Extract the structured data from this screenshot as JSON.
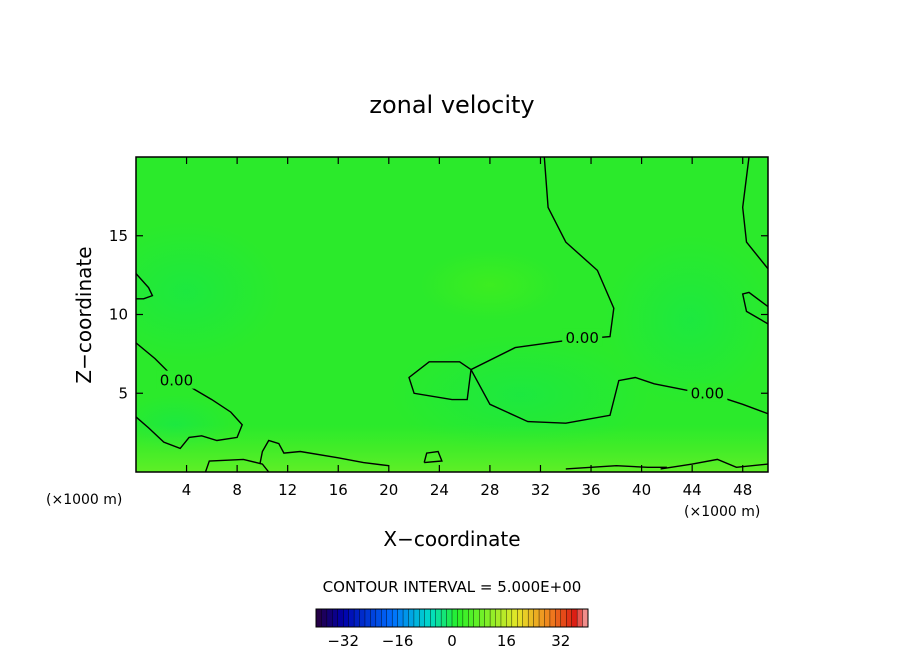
{
  "chart_data": {
    "type": "heatmap",
    "title": "zonal velocity",
    "xlabel": "X−coordinate",
    "ylabel": "Z−coordinate",
    "x_unit_left": "(×1000 m)",
    "x_unit_right": "(×1000 m)",
    "xlim": [
      0,
      50
    ],
    "ylim": [
      0,
      20
    ],
    "x_ticks": [
      4,
      8,
      12,
      16,
      20,
      24,
      28,
      32,
      36,
      40,
      44,
      48
    ],
    "x_tick_labels": [
      "4",
      "8",
      "12",
      "16",
      "20",
      "24",
      "28",
      "32",
      "36",
      "40",
      "44",
      "48"
    ],
    "y_ticks": [
      5,
      10,
      15
    ],
    "y_tick_labels": [
      "5",
      "10",
      "15"
    ],
    "contour_interval_text": "CONTOUR INTERVAL = 5.000E+00",
    "contour_labels": [
      "0.00",
      "0.00",
      "0.00"
    ],
    "contour_label_positions": [
      [
        3.2,
        5.8
      ],
      [
        35.3,
        8.5
      ],
      [
        45.2,
        5.0
      ]
    ],
    "zero_contours": [
      [
        [
          32.3,
          20
        ],
        [
          32.6,
          16.8
        ],
        [
          34.0,
          14.6
        ],
        [
          36.5,
          12.8
        ],
        [
          37.8,
          10.4
        ],
        [
          37.5,
          8.6
        ],
        [
          34.5,
          8.4
        ],
        [
          30.0,
          7.9
        ],
        [
          26.5,
          6.5
        ],
        [
          28.0,
          4.3
        ],
        [
          31.0,
          3.2
        ],
        [
          34.0,
          3.1
        ],
        [
          37.5,
          3.6
        ],
        [
          38.2,
          5.8
        ],
        [
          39.5,
          6.0
        ],
        [
          41.0,
          5.6
        ],
        [
          43.5,
          5.2
        ],
        [
          45.7,
          4.9
        ],
        [
          48.0,
          4.3
        ],
        [
          50.0,
          3.7
        ]
      ],
      [
        [
          26.5,
          6.5
        ],
        [
          25.6,
          7.0
        ],
        [
          23.2,
          7.0
        ],
        [
          21.6,
          6.0
        ],
        [
          22.0,
          5.0
        ],
        [
          25.0,
          4.6
        ],
        [
          26.2,
          4.6
        ],
        [
          26.5,
          6.5
        ]
      ],
      [
        [
          0,
          8.2
        ],
        [
          1.5,
          7.2
        ],
        [
          3.0,
          6.0
        ],
        [
          4.5,
          5.3
        ],
        [
          6.0,
          4.6
        ],
        [
          7.5,
          3.8
        ],
        [
          8.4,
          3.0
        ],
        [
          8.0,
          2.2
        ],
        [
          6.4,
          2.0
        ],
        [
          5.2,
          2.3
        ],
        [
          4.2,
          2.2
        ],
        [
          3.5,
          1.5
        ],
        [
          2.2,
          1.9
        ],
        [
          1.0,
          2.8
        ],
        [
          0,
          3.5
        ]
      ],
      [
        [
          5.5,
          0.0
        ],
        [
          5.8,
          0.7
        ],
        [
          8.5,
          0.8
        ],
        [
          10.0,
          0.5
        ],
        [
          10.5,
          0.0
        ]
      ],
      [
        [
          9.8,
          0.5
        ],
        [
          10.0,
          1.3
        ],
        [
          10.5,
          2.0
        ],
        [
          11.3,
          1.8
        ],
        [
          11.7,
          1.2
        ],
        [
          13.0,
          1.3
        ],
        [
          16.0,
          0.9
        ],
        [
          18.0,
          0.6
        ],
        [
          20.0,
          0.4
        ]
      ],
      [
        [
          22.8,
          0.6
        ],
        [
          23.0,
          1.2
        ],
        [
          23.9,
          1.3
        ],
        [
          24.2,
          0.7
        ],
        [
          22.8,
          0.6
        ]
      ],
      [
        [
          0,
          12.6
        ],
        [
          1.0,
          11.7
        ],
        [
          1.3,
          11.2
        ],
        [
          0.6,
          11.0
        ],
        [
          0,
          11.0
        ]
      ],
      [
        [
          50.0,
          10.5
        ],
        [
          48.5,
          11.4
        ],
        [
          48.0,
          11.3
        ],
        [
          48.3,
          10.2
        ],
        [
          50.0,
          9.4
        ]
      ],
      [
        [
          50.0,
          12.9
        ],
        [
          48.3,
          14.6
        ],
        [
          48.0,
          16.8
        ],
        [
          48.5,
          20.0
        ]
      ],
      [
        [
          34.0,
          0.2
        ],
        [
          38.0,
          0.4
        ],
        [
          40.5,
          0.3
        ],
        [
          42.0,
          0.3
        ]
      ],
      [
        [
          41.5,
          0.2
        ],
        [
          44.0,
          0.5
        ],
        [
          46.0,
          0.8
        ],
        [
          47.5,
          0.3
        ],
        [
          50.0,
          0.5
        ]
      ]
    ],
    "field_base_color": "#26ee26",
    "colorbar": {
      "ticks": [
        -32,
        -16,
        0,
        16,
        32
      ],
      "tick_labels": [
        "−32",
        "−16",
        "0",
        "16",
        "32"
      ],
      "range": [
        -40,
        40
      ],
      "levels": 50
    }
  }
}
